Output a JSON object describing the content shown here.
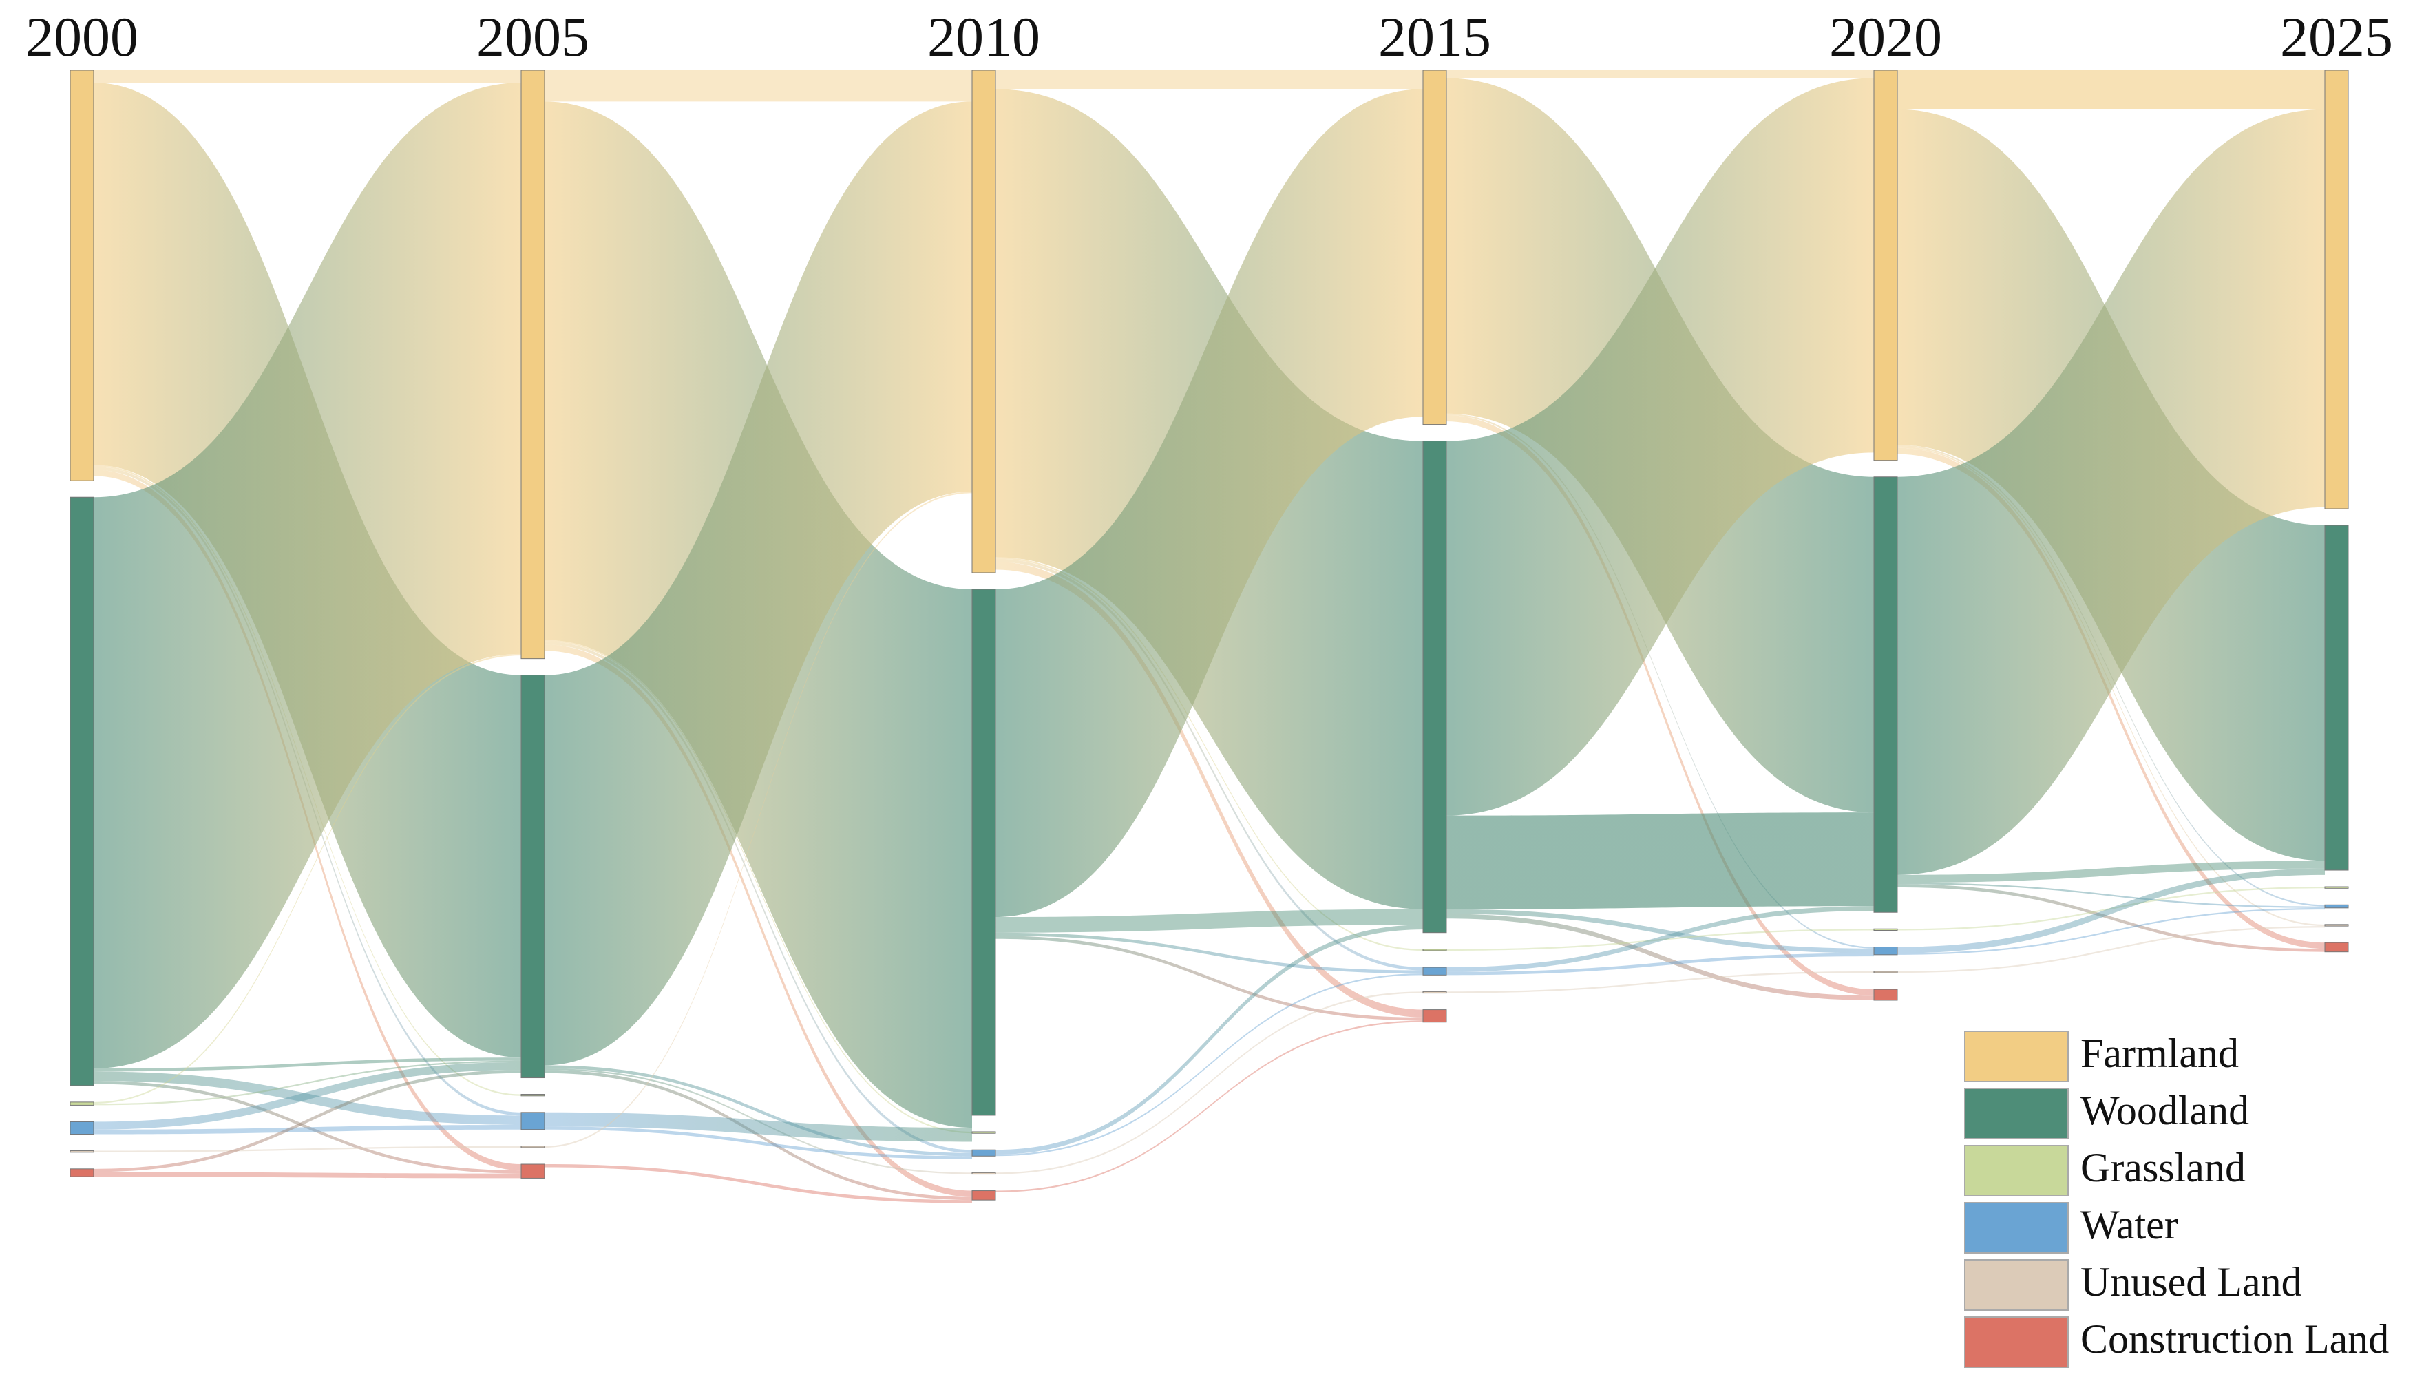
{
  "chart_data": {
    "type": "sankey",
    "stages": [
      "2000",
      "2005",
      "2010",
      "2015",
      "2020",
      "2025"
    ],
    "series": [
      {
        "name": "Farmland",
        "color": "#f2cd84",
        "values": [
          263,
          377,
          322,
          227,
          250,
          281
        ]
      },
      {
        "name": "Woodland",
        "color": "#4e8d78",
        "values": [
          377,
          258,
          337,
          315,
          279,
          221
        ]
      },
      {
        "name": "Grassland",
        "color": "#c8d89a",
        "values": [
          2,
          1,
          1,
          1,
          1,
          1
        ]
      },
      {
        "name": "Water",
        "color": "#6aa4d3",
        "values": [
          8,
          11,
          4,
          5,
          5,
          2
        ]
      },
      {
        "name": "Unused Land",
        "color": "#dccbb8",
        "values": [
          1,
          1,
          1,
          1,
          1,
          1
        ]
      },
      {
        "name": "Construction Land",
        "color": "#dc7365",
        "values": [
          5,
          9,
          6,
          8,
          7,
          6
        ]
      }
    ],
    "transitions": [
      {
        "from": "2000",
        "to": "2005",
        "flows": [
          [
            "Farmland",
            "Farmland",
            8
          ],
          [
            "Farmland",
            "Woodland",
            245
          ],
          [
            "Farmland",
            "Grassland",
            1
          ],
          [
            "Farmland",
            "Water",
            2
          ],
          [
            "Farmland",
            "Construction Land",
            4
          ],
          [
            "Woodland",
            "Farmland",
            366
          ],
          [
            "Woodland",
            "Woodland",
            2
          ],
          [
            "Woodland",
            "Water",
            6
          ],
          [
            "Woodland",
            "Construction Land",
            2
          ],
          [
            "Grassland",
            "Farmland",
            1
          ],
          [
            "Grassland",
            "Woodland",
            1
          ],
          [
            "Water",
            "Woodland",
            5
          ],
          [
            "Water",
            "Water",
            3
          ],
          [
            "Unused Land",
            "Unused Land",
            1
          ],
          [
            "Construction Land",
            "Woodland",
            2
          ],
          [
            "Construction Land",
            "Construction Land",
            3
          ]
        ]
      },
      {
        "from": "2005",
        "to": "2010",
        "flows": [
          [
            "Farmland",
            "Farmland",
            20
          ],
          [
            "Farmland",
            "Woodland",
            345
          ],
          [
            "Farmland",
            "Grassland",
            1
          ],
          [
            "Farmland",
            "Water",
            2
          ],
          [
            "Farmland",
            "Construction Land",
            4
          ],
          [
            "Woodland",
            "Farmland",
            250
          ],
          [
            "Woodland",
            "Water",
            2
          ],
          [
            "Woodland",
            "Unused Land",
            1
          ],
          [
            "Woodland",
            "Construction Land",
            2
          ],
          [
            "Water",
            "Woodland",
            9
          ],
          [
            "Water",
            "Water",
            2
          ],
          [
            "Unused Land",
            "Farmland",
            1
          ],
          [
            "Construction Land",
            "Construction Land",
            2
          ]
        ]
      },
      {
        "from": "2010",
        "to": "2015",
        "flows": [
          [
            "Farmland",
            "Farmland",
            12
          ],
          [
            "Farmland",
            "Woodland",
            300
          ],
          [
            "Farmland",
            "Grassland",
            1
          ],
          [
            "Farmland",
            "Water",
            2
          ],
          [
            "Farmland",
            "Construction Land",
            5
          ],
          [
            "Woodland",
            "Farmland",
            210
          ],
          [
            "Woodland",
            "Woodland",
            10
          ],
          [
            "Woodland",
            "Water",
            2
          ],
          [
            "Woodland",
            "Construction Land",
            2
          ],
          [
            "Water",
            "Woodland",
            3
          ],
          [
            "Water",
            "Water",
            1
          ],
          [
            "Unused Land",
            "Unused Land",
            1
          ],
          [
            "Construction Land",
            "Construction Land",
            1
          ]
        ]
      },
      {
        "from": "2015",
        "to": "2020",
        "flows": [
          [
            "Farmland",
            "Farmland",
            5
          ],
          [
            "Farmland",
            "Woodland",
            215
          ],
          [
            "Farmland",
            "Water",
            1
          ],
          [
            "Farmland",
            "Construction Land",
            4
          ],
          [
            "Woodland",
            "Farmland",
            240
          ],
          [
            "Woodland",
            "Woodland",
            60
          ],
          [
            "Woodland",
            "Water",
            3
          ],
          [
            "Woodland",
            "Construction Land",
            3
          ],
          [
            "Grassland",
            "Grassland",
            1
          ],
          [
            "Water",
            "Woodland",
            3
          ],
          [
            "Water",
            "Water",
            2
          ],
          [
            "Unused Land",
            "Unused Land",
            1
          ]
        ]
      },
      {
        "from": "2020",
        "to": "2025",
        "flows": [
          [
            "Farmland",
            "Farmland",
            25
          ],
          [
            "Farmland",
            "Woodland",
            215
          ],
          [
            "Farmland",
            "Water",
            1
          ],
          [
            "Farmland",
            "Unused Land",
            1
          ],
          [
            "Farmland",
            "Construction Land",
            4
          ],
          [
            "Woodland",
            "Farmland",
            255
          ],
          [
            "Woodland",
            "Woodland",
            5
          ],
          [
            "Woodland",
            "Water",
            1
          ],
          [
            "Woodland",
            "Construction Land",
            2
          ],
          [
            "Grassland",
            "Grassland",
            1
          ],
          [
            "Water",
            "Woodland",
            4
          ],
          [
            "Water",
            "Water",
            1
          ],
          [
            "Unused Land",
            "Unused Land",
            1
          ]
        ]
      }
    ]
  }
}
